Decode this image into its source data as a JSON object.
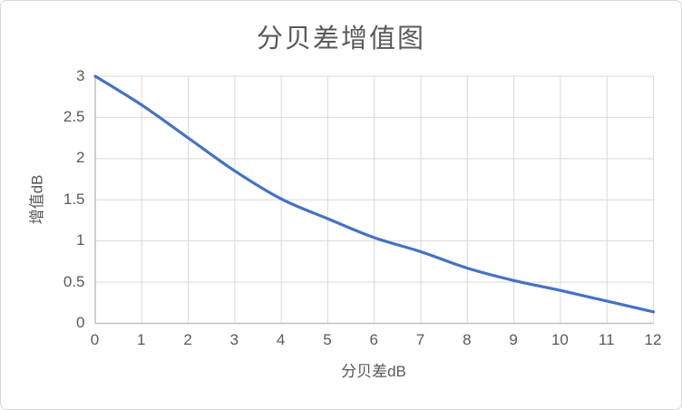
{
  "chart": {
    "title": "分贝差增值图",
    "x_axis_title": "分贝差dB",
    "y_axis_title": "增值dB"
  },
  "chart_data": {
    "type": "line",
    "title": "分贝差增值图",
    "xlabel": "分贝差dB",
    "ylabel": "增值dB",
    "x": [
      0,
      1,
      2,
      3,
      4,
      5,
      6,
      7,
      8,
      9,
      10,
      11,
      12
    ],
    "values": [
      3.0,
      2.65,
      2.25,
      1.85,
      1.51,
      1.27,
      1.04,
      0.87,
      0.67,
      0.52,
      0.4,
      0.27,
      0.14
    ],
    "xlim": [
      0,
      12
    ],
    "ylim": [
      0,
      3
    ],
    "x_ticks": [
      0,
      1,
      2,
      3,
      4,
      5,
      6,
      7,
      8,
      9,
      10,
      11,
      12
    ],
    "y_ticks": [
      0,
      0.5,
      1,
      1.5,
      2,
      2.5,
      3
    ],
    "grid": true,
    "legend": false,
    "smooth": true,
    "colors": {
      "line": "#4472C4",
      "gridline": "#d9d9d9",
      "axis_line": "#bfbfbf",
      "text": "#595959",
      "background": "#ffffff",
      "border": "#d7d7d7"
    }
  }
}
